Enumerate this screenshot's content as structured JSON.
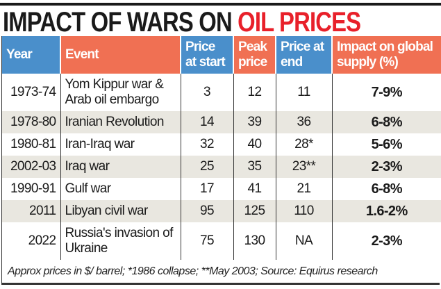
{
  "title": {
    "part1": "IMPACT OF WARS ON ",
    "part2": "OIL PRICES"
  },
  "colors": {
    "header_blue": "#4a8fcb",
    "header_orange": "#f07053",
    "title_red": "#e8202a",
    "row_alt": "#e9e7e0"
  },
  "headers": [
    "Year",
    "Event",
    "Price at start",
    "Peak price",
    "Price at end",
    "Impact on global supply (%)"
  ],
  "rows": [
    {
      "year": "1973-74",
      "event": "Yom Kippur war & Arab oil embargo",
      "start": "3",
      "peak": "12",
      "end": "11",
      "impact": "7-9%"
    },
    {
      "year": "1978-80",
      "event": "Iranian Revolution",
      "start": "14",
      "peak": "39",
      "end": "36",
      "impact": "6-8%"
    },
    {
      "year": "1980-81",
      "event": "Iran-Iraq war",
      "start": "32",
      "peak": "40",
      "end": "28*",
      "impact": "5-6%"
    },
    {
      "year": "2002-03",
      "event": "Iraq war",
      "start": "25",
      "peak": "35",
      "end": "23**",
      "impact": "2-3%"
    },
    {
      "year": "1990-91",
      "event": "Gulf war",
      "start": "17",
      "peak": "41",
      "end": "21",
      "impact": "6-8%"
    },
    {
      "year": "2011",
      "event": "Libyan civil war",
      "start": "95",
      "peak": "125",
      "end": "110",
      "impact": "1.6-2%"
    },
    {
      "year": "2022",
      "event": "Russia's invasion of Ukraine",
      "start": "75",
      "peak": "130",
      "end": "NA",
      "impact": "2-3%"
    }
  ],
  "footnote": "Approx prices in $/ barrel; *1986 collapse; **May 2003; Source: Equirus research"
}
